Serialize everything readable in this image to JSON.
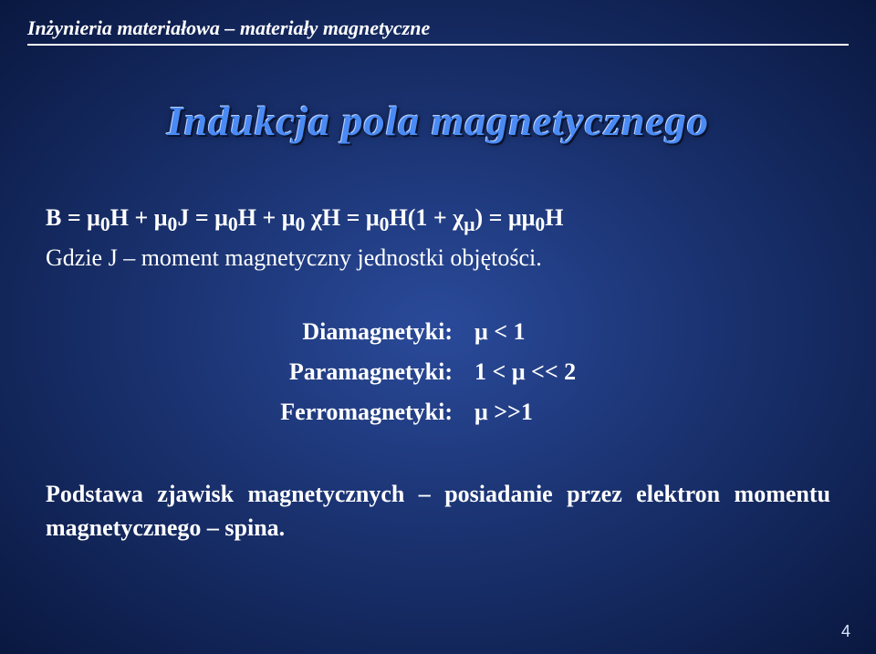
{
  "header": {
    "text": "Inżynieria materiałowa – materiały magnetyczne"
  },
  "title": "Indukcja pola magnetycznego",
  "formula": {
    "line1_html": "B = μ<sub>0</sub>H + μ<sub>0</sub>J = μ<sub>0</sub>H + μ<sub>0</sub> χH = μ<sub>0</sub>H(1 + χ<sub>μ</sub>) = μμ<sub>0</sub>H",
    "line2": "Gdzie J – moment magnetyczny jednostki objętości."
  },
  "list": {
    "items": [
      {
        "label": "Diamagnetyki:",
        "value": "μ < 1"
      },
      {
        "label": "Paramagnetyki:",
        "value": "1  < μ << 2"
      },
      {
        "label": "Ferromagnetyki:",
        "value": "μ >>1"
      }
    ]
  },
  "bottom": {
    "text": "Podstawa zjawisk magnetycznych – posiadanie przez elektron momentu magnetycznego – spina."
  },
  "pageNumber": "4",
  "colors": {
    "bg_center": "#2a4a9a",
    "bg_edge": "#0a1840",
    "title_color": "#4a8af4",
    "text_color": "#ffffff"
  },
  "fonts": {
    "header_size": 22,
    "title_size": 46,
    "body_size": 26
  }
}
